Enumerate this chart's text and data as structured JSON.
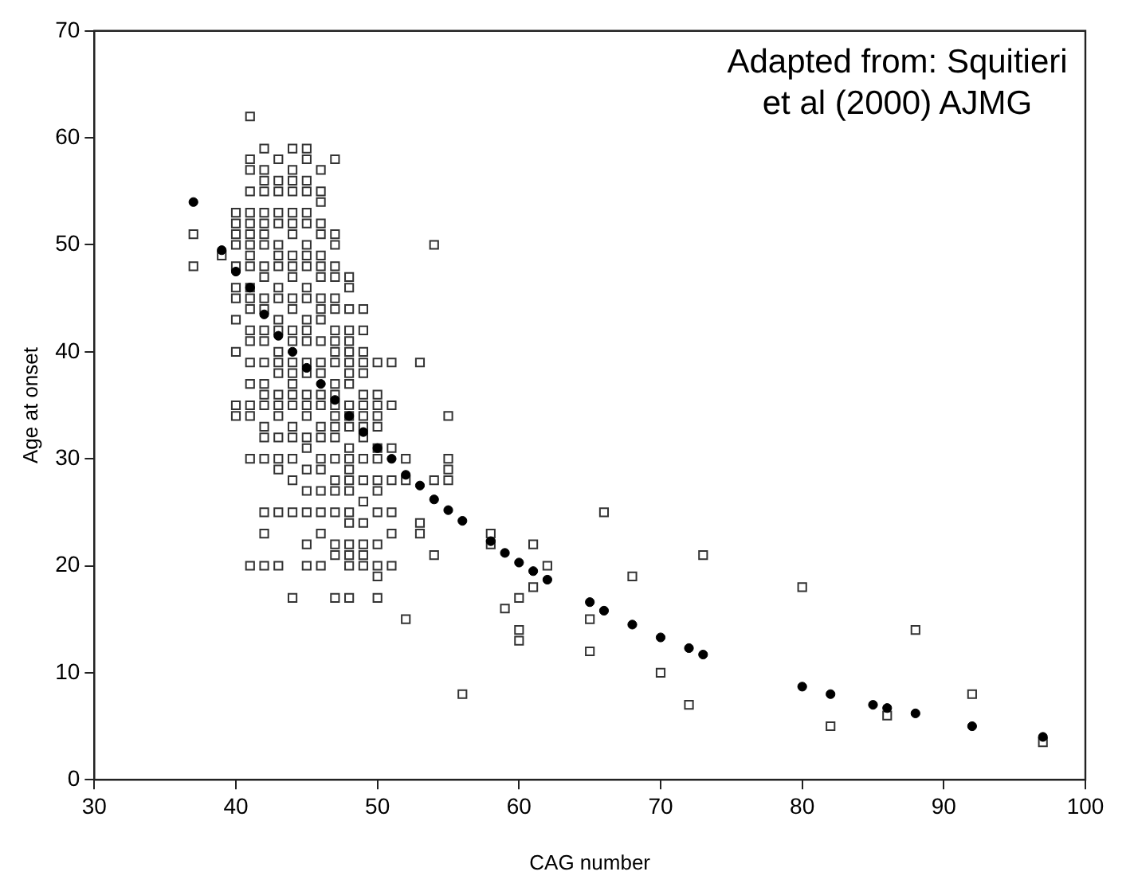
{
  "chart_data": {
    "type": "scatter",
    "xlabel": "CAG number",
    "ylabel": "Age at onset",
    "annotations": [
      "Adapted from: Squitieri et al (2000) AJMG"
    ],
    "xlim": [
      30,
      100
    ],
    "ylim": [
      0,
      70
    ],
    "xticks": [
      30,
      40,
      50,
      60,
      70,
      80,
      90,
      100
    ],
    "yticks": [
      0,
      10,
      20,
      30,
      40,
      50,
      60,
      70
    ],
    "grid": false,
    "legend": false,
    "series": [
      {
        "color": "#333333",
        "marker": "square",
        "x": [
          37,
          37,
          39,
          40,
          40,
          40,
          40,
          40,
          40,
          40,
          40,
          40,
          40,
          40,
          41,
          41,
          41,
          41,
          41,
          41,
          41,
          41,
          41,
          41,
          41,
          41,
          41,
          41,
          41,
          41,
          41,
          41,
          41,
          41,
          41,
          42,
          42,
          42,
          42,
          42,
          42,
          42,
          42,
          42,
          42,
          42,
          42,
          42,
          42,
          42,
          42,
          42,
          42,
          42,
          42,
          42,
          42,
          42,
          42,
          43,
          43,
          43,
          43,
          43,
          43,
          43,
          43,
          43,
          43,
          43,
          43,
          43,
          43,
          43,
          43,
          43,
          43,
          43,
          43,
          43,
          43,
          43,
          44,
          44,
          44,
          44,
          44,
          44,
          44,
          44,
          44,
          44,
          44,
          44,
          44,
          44,
          44,
          44,
          44,
          44,
          44,
          44,
          44,
          44,
          44,
          44,
          44,
          45,
          45,
          45,
          45,
          45,
          45,
          45,
          45,
          45,
          45,
          45,
          45,
          45,
          45,
          45,
          45,
          45,
          45,
          45,
          45,
          45,
          45,
          45,
          45,
          45,
          45,
          46,
          46,
          46,
          46,
          46,
          46,
          46,
          46,
          46,
          46,
          46,
          46,
          46,
          46,
          46,
          46,
          46,
          46,
          46,
          46,
          46,
          46,
          46,
          46,
          47,
          47,
          47,
          47,
          47,
          47,
          47,
          47,
          47,
          47,
          47,
          47,
          47,
          47,
          47,
          47,
          47,
          47,
          47,
          47,
          47,
          47,
          47,
          47,
          48,
          48,
          48,
          48,
          48,
          48,
          48,
          48,
          48,
          48,
          48,
          48,
          48,
          48,
          48,
          48,
          48,
          48,
          48,
          48,
          48,
          48,
          48,
          49,
          49,
          49,
          49,
          49,
          49,
          49,
          49,
          49,
          49,
          49,
          49,
          49,
          49,
          49,
          49,
          49,
          50,
          50,
          50,
          50,
          50,
          50,
          50,
          50,
          50,
          50,
          50,
          50,
          50,
          50,
          51,
          51,
          51,
          51,
          51,
          51,
          51,
          52,
          52,
          52,
          53,
          53,
          53,
          54,
          54,
          54,
          55,
          55,
          55,
          55,
          56,
          58,
          58,
          59,
          60,
          60,
          60,
          61,
          61,
          62,
          65,
          65,
          66,
          68,
          70,
          72,
          73,
          80,
          82,
          86,
          88,
          92,
          97
        ],
        "values": [
          51,
          48,
          49,
          53,
          52,
          51,
          50,
          48,
          46,
          45,
          43,
          40,
          35,
          34,
          62,
          58,
          57,
          55,
          53,
          52,
          51,
          50,
          49,
          48,
          46,
          45,
          44,
          42,
          41,
          39,
          37,
          35,
          34,
          30,
          20,
          59,
          57,
          56,
          55,
          53,
          52,
          51,
          50,
          48,
          47,
          45,
          44,
          42,
          41,
          39,
          37,
          36,
          35,
          33,
          32,
          30,
          25,
          23,
          20,
          58,
          56,
          55,
          53,
          52,
          50,
          49,
          48,
          46,
          45,
          43,
          42,
          40,
          39,
          38,
          36,
          35,
          34,
          32,
          30,
          29,
          25,
          20,
          59,
          57,
          56,
          55,
          53,
          52,
          51,
          49,
          48,
          47,
          45,
          44,
          42,
          41,
          39,
          38,
          37,
          36,
          35,
          33,
          32,
          30,
          28,
          25,
          17,
          59,
          58,
          56,
          55,
          53,
          52,
          50,
          49,
          48,
          46,
          45,
          43,
          42,
          41,
          39,
          38,
          36,
          35,
          34,
          32,
          31,
          29,
          27,
          25,
          22,
          20,
          57,
          55,
          54,
          52,
          51,
          49,
          48,
          47,
          45,
          44,
          43,
          41,
          39,
          38,
          36,
          35,
          33,
          32,
          30,
          29,
          27,
          25,
          23,
          20,
          58,
          51,
          50,
          48,
          47,
          45,
          44,
          42,
          41,
          40,
          39,
          37,
          36,
          35,
          34,
          33,
          32,
          30,
          28,
          27,
          25,
          22,
          21,
          17,
          47,
          46,
          44,
          42,
          41,
          40,
          39,
          38,
          37,
          35,
          34,
          33,
          31,
          30,
          29,
          28,
          27,
          25,
          24,
          22,
          21,
          20,
          17,
          44,
          42,
          40,
          39,
          38,
          36,
          35,
          34,
          33,
          32,
          30,
          28,
          26,
          24,
          22,
          21,
          20,
          39,
          36,
          35,
          34,
          33,
          31,
          30,
          28,
          27,
          25,
          22,
          20,
          19,
          17,
          39,
          35,
          31,
          28,
          25,
          23,
          20,
          30,
          28,
          15,
          39,
          24,
          23,
          50,
          28,
          21,
          34,
          30,
          29,
          28,
          8,
          23,
          22,
          16,
          17,
          14,
          13,
          22,
          18,
          20,
          15,
          12,
          25,
          19,
          10,
          7,
          21,
          18,
          5,
          6,
          14,
          8,
          3.5
        ]
      },
      {
        "color": "#000000",
        "marker": "circle",
        "x": [
          37,
          39,
          40,
          41,
          42,
          43,
          44,
          45,
          46,
          47,
          48,
          49,
          50,
          51,
          52,
          53,
          54,
          55,
          56,
          58,
          59,
          60,
          61,
          62,
          65,
          66,
          68,
          70,
          72,
          73,
          80,
          82,
          85,
          86,
          88,
          92,
          97
        ],
        "values": [
          54,
          49.5,
          47.5,
          46,
          43.5,
          41.5,
          40,
          38.5,
          37,
          35.5,
          34,
          32.5,
          31,
          30,
          28.5,
          27.5,
          26.2,
          25.2,
          24.2,
          22.3,
          21.2,
          20.3,
          19.5,
          18.7,
          16.6,
          15.8,
          14.5,
          13.3,
          12.3,
          11.7,
          8.7,
          8,
          7,
          6.7,
          6.2,
          5,
          4
        ]
      }
    ]
  }
}
